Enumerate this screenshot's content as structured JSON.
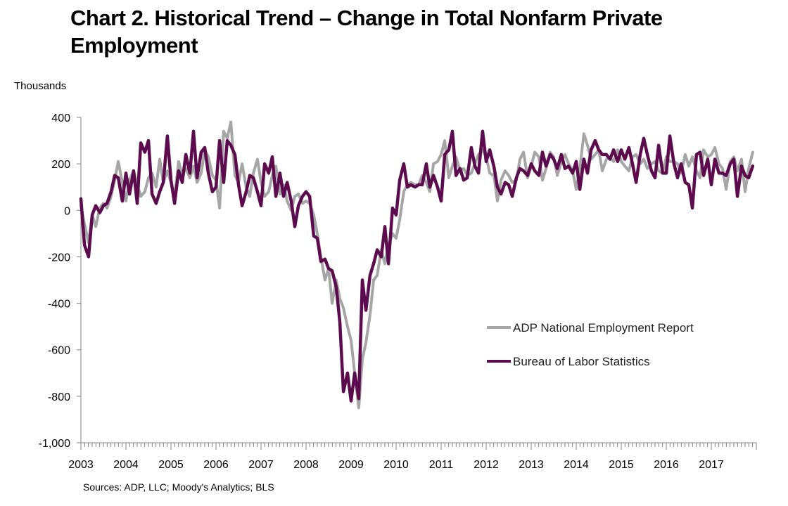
{
  "title": "Chart 2. Historical Trend – Change in Total Nonfarm Private Employment",
  "unit_label": "Thousands",
  "source": "Sources: ADP, LLC; Moody's Analytics; BLS",
  "colors": {
    "adp": "#a6a6a6",
    "bls": "#5c0c4e",
    "axis": "#808080"
  },
  "chart_data": {
    "type": "line",
    "title": "Chart 2. Historical Trend – Change in Total Nonfarm Private Employment",
    "ylabel": "Thousands",
    "xlabel": "",
    "ylim": [
      -1000,
      400
    ],
    "yticks": [
      400,
      200,
      0,
      -200,
      -400,
      -600,
      -800,
      -1000
    ],
    "ytick_labels": [
      "400",
      "200",
      "0",
      "-200",
      "-400",
      "-600",
      "-800",
      "-1,000"
    ],
    "xlim": [
      2003,
      2018
    ],
    "xticks": [
      2003,
      2004,
      2005,
      2006,
      2007,
      2008,
      2009,
      2010,
      2011,
      2012,
      2013,
      2014,
      2015,
      2016,
      2017
    ],
    "xtick_labels": [
      "2003",
      "2004",
      "2005",
      "2006",
      "2007",
      "2008",
      "2009",
      "2010",
      "2011",
      "2012",
      "2013",
      "2014",
      "2015",
      "2016",
      "2017"
    ],
    "grid": false,
    "legend_position": "lower-right",
    "series": [
      {
        "name": "ADP National Employment Report",
        "key": "adp",
        "x": [
          2003.0,
          2003.08,
          2003.17,
          2003.25,
          2003.33,
          2003.42,
          2003.5,
          2003.58,
          2003.67,
          2003.75,
          2003.83,
          2003.92,
          2004.0,
          2004.08,
          2004.17,
          2004.25,
          2004.33,
          2004.42,
          2004.5,
          2004.58,
          2004.67,
          2004.75,
          2004.83,
          2004.92,
          2005.0,
          2005.08,
          2005.17,
          2005.25,
          2005.33,
          2005.42,
          2005.5,
          2005.58,
          2005.67,
          2005.75,
          2005.83,
          2005.92,
          2006.0,
          2006.08,
          2006.17,
          2006.25,
          2006.33,
          2006.42,
          2006.5,
          2006.58,
          2006.67,
          2006.75,
          2006.83,
          2006.92,
          2007.0,
          2007.08,
          2007.17,
          2007.25,
          2007.33,
          2007.42,
          2007.5,
          2007.58,
          2007.67,
          2007.75,
          2007.83,
          2007.92,
          2008.0,
          2008.08,
          2008.17,
          2008.25,
          2008.33,
          2008.42,
          2008.5,
          2008.58,
          2008.67,
          2008.75,
          2008.83,
          2008.92,
          2009.0,
          2009.08,
          2009.17,
          2009.25,
          2009.33,
          2009.42,
          2009.5,
          2009.58,
          2009.67,
          2009.75,
          2009.83,
          2009.92,
          2010.0,
          2010.08,
          2010.17,
          2010.25,
          2010.33,
          2010.42,
          2010.5,
          2010.58,
          2010.67,
          2010.75,
          2010.83,
          2010.92,
          2011.0,
          2011.08,
          2011.17,
          2011.25,
          2011.33,
          2011.42,
          2011.5,
          2011.58,
          2011.67,
          2011.75,
          2011.83,
          2011.92,
          2012.0,
          2012.08,
          2012.17,
          2012.25,
          2012.33,
          2012.42,
          2012.5,
          2012.58,
          2012.67,
          2012.75,
          2012.83,
          2012.92,
          2013.0,
          2013.08,
          2013.17,
          2013.25,
          2013.33,
          2013.42,
          2013.5,
          2013.58,
          2013.67,
          2013.75,
          2013.83,
          2013.92,
          2014.0,
          2014.08,
          2014.17,
          2014.25,
          2014.33,
          2014.42,
          2014.5,
          2014.58,
          2014.67,
          2014.75,
          2014.83,
          2014.92,
          2015.0,
          2015.08,
          2015.17,
          2015.25,
          2015.33,
          2015.42,
          2015.5,
          2015.58,
          2015.67,
          2015.75,
          2015.83,
          2015.92,
          2016.0,
          2016.08,
          2016.17,
          2016.25,
          2016.33,
          2016.42,
          2016.5,
          2016.58,
          2016.67,
          2016.75,
          2016.83,
          2016.92,
          2017.0,
          2017.08,
          2017.17,
          2017.25,
          2017.33,
          2017.42,
          2017.5,
          2017.58,
          2017.67,
          2017.75,
          2017.83,
          2017.92
        ],
        "y": [
          20,
          -60,
          -140,
          -20,
          -70,
          10,
          30,
          10,
          60,
          130,
          210,
          120,
          40,
          130,
          170,
          110,
          60,
          80,
          140,
          160,
          100,
          220,
          120,
          170,
          120,
          60,
          210,
          150,
          180,
          140,
          190,
          120,
          160,
          260,
          230,
          150,
          130,
          10,
          340,
          310,
          380,
          150,
          120,
          200,
          100,
          60,
          160,
          220,
          120,
          60,
          80,
          150,
          190,
          70,
          110,
          40,
          0,
          60,
          70,
          30,
          40,
          30,
          -20,
          -100,
          -200,
          -300,
          -250,
          -400,
          -300,
          -380,
          -420,
          -500,
          -560,
          -700,
          -850,
          -640,
          -570,
          -450,
          -300,
          -280,
          -170,
          -230,
          -150,
          -100,
          -120,
          -40,
          80,
          110,
          120,
          110,
          110,
          150,
          120,
          80,
          200,
          210,
          240,
          300,
          140,
          190,
          230,
          170,
          180,
          150,
          160,
          200,
          240,
          260,
          230,
          160,
          150,
          40,
          130,
          170,
          150,
          120,
          130,
          220,
          250,
          140,
          190,
          250,
          230,
          130,
          180,
          250,
          230,
          150,
          210,
          240,
          200,
          170,
          90,
          180,
          330,
          280,
          220,
          240,
          260,
          170,
          220,
          230,
          210,
          260,
          210,
          190,
          170,
          230,
          240,
          200,
          220,
          180,
          200,
          210,
          170,
          160,
          230,
          210,
          210,
          200,
          160,
          240,
          190,
          230,
          170,
          140,
          260,
          230,
          240,
          270,
          200,
          180,
          90,
          210,
          230,
          170,
          220,
          80,
          180,
          250
        ]
      },
      {
        "name": "Bureau of Labor Statistics",
        "key": "bls",
        "x": [
          2003.0,
          2003.08,
          2003.17,
          2003.25,
          2003.33,
          2003.42,
          2003.5,
          2003.58,
          2003.67,
          2003.75,
          2003.83,
          2003.92,
          2004.0,
          2004.08,
          2004.17,
          2004.25,
          2004.33,
          2004.42,
          2004.5,
          2004.58,
          2004.67,
          2004.75,
          2004.83,
          2004.92,
          2005.0,
          2005.08,
          2005.17,
          2005.25,
          2005.33,
          2005.42,
          2005.5,
          2005.58,
          2005.67,
          2005.75,
          2005.83,
          2005.92,
          2006.0,
          2006.08,
          2006.17,
          2006.25,
          2006.33,
          2006.42,
          2006.5,
          2006.58,
          2006.67,
          2006.75,
          2006.83,
          2006.92,
          2007.0,
          2007.08,
          2007.17,
          2007.25,
          2007.33,
          2007.42,
          2007.5,
          2007.58,
          2007.67,
          2007.75,
          2007.83,
          2007.92,
          2008.0,
          2008.08,
          2008.17,
          2008.25,
          2008.33,
          2008.42,
          2008.5,
          2008.58,
          2008.67,
          2008.75,
          2008.83,
          2008.92,
          2009.0,
          2009.08,
          2009.17,
          2009.25,
          2009.33,
          2009.42,
          2009.5,
          2009.58,
          2009.67,
          2009.75,
          2009.83,
          2009.92,
          2010.0,
          2010.08,
          2010.17,
          2010.25,
          2010.33,
          2010.42,
          2010.5,
          2010.58,
          2010.67,
          2010.75,
          2010.83,
          2010.92,
          2011.0,
          2011.08,
          2011.17,
          2011.25,
          2011.33,
          2011.42,
          2011.5,
          2011.58,
          2011.67,
          2011.75,
          2011.83,
          2011.92,
          2012.0,
          2012.08,
          2012.17,
          2012.25,
          2012.33,
          2012.42,
          2012.5,
          2012.58,
          2012.67,
          2012.75,
          2012.83,
          2012.92,
          2013.0,
          2013.08,
          2013.17,
          2013.25,
          2013.33,
          2013.42,
          2013.5,
          2013.58,
          2013.67,
          2013.75,
          2013.83,
          2013.92,
          2014.0,
          2014.08,
          2014.17,
          2014.25,
          2014.33,
          2014.42,
          2014.5,
          2014.58,
          2014.67,
          2014.75,
          2014.83,
          2014.92,
          2015.0,
          2015.08,
          2015.17,
          2015.25,
          2015.33,
          2015.42,
          2015.5,
          2015.58,
          2015.67,
          2015.75,
          2015.83,
          2015.92,
          2016.0,
          2016.08,
          2016.17,
          2016.25,
          2016.33,
          2016.42,
          2016.5,
          2016.58,
          2016.67,
          2016.75,
          2016.83,
          2016.92,
          2017.0,
          2017.08,
          2017.17,
          2017.25,
          2017.33,
          2017.42,
          2017.5,
          2017.58,
          2017.67,
          2017.75,
          2017.83,
          2017.92
        ],
        "y": [
          50,
          -150,
          -200,
          -20,
          20,
          -10,
          20,
          30,
          80,
          150,
          140,
          40,
          160,
          70,
          170,
          30,
          290,
          250,
          300,
          70,
          30,
          80,
          120,
          320,
          130,
          30,
          170,
          120,
          240,
          160,
          340,
          140,
          250,
          270,
          160,
          80,
          100,
          300,
          120,
          300,
          280,
          240,
          110,
          20,
          80,
          150,
          140,
          80,
          20,
          200,
          160,
          230,
          60,
          160,
          60,
          120,
          40,
          -70,
          20,
          60,
          80,
          60,
          -110,
          -120,
          -220,
          -210,
          -250,
          -260,
          -330,
          -480,
          -780,
          -700,
          -820,
          -700,
          -810,
          -300,
          -430,
          -280,
          -230,
          -170,
          -200,
          -70,
          -230,
          10,
          -20,
          130,
          200,
          100,
          110,
          100,
          110,
          110,
          200,
          100,
          150,
          100,
          40,
          240,
          260,
          340,
          150,
          180,
          130,
          140,
          270,
          190,
          160,
          340,
          210,
          260,
          190,
          100,
          70,
          120,
          110,
          60,
          140,
          180,
          170,
          150,
          200,
          170,
          150,
          250,
          190,
          240,
          220,
          180,
          240,
          180,
          190,
          160,
          210,
          90,
          220,
          160,
          260,
          300,
          260,
          240,
          240,
          220,
          260,
          210,
          260,
          220,
          270,
          200,
          120,
          240,
          310,
          240,
          170,
          140,
          280,
          160,
          160,
          320,
          200,
          140,
          200,
          120,
          110,
          10,
          240,
          250,
          150,
          220,
          110,
          220,
          160,
          160,
          150,
          200,
          220,
          60,
          190,
          150,
          140,
          190
        ]
      }
    ]
  }
}
